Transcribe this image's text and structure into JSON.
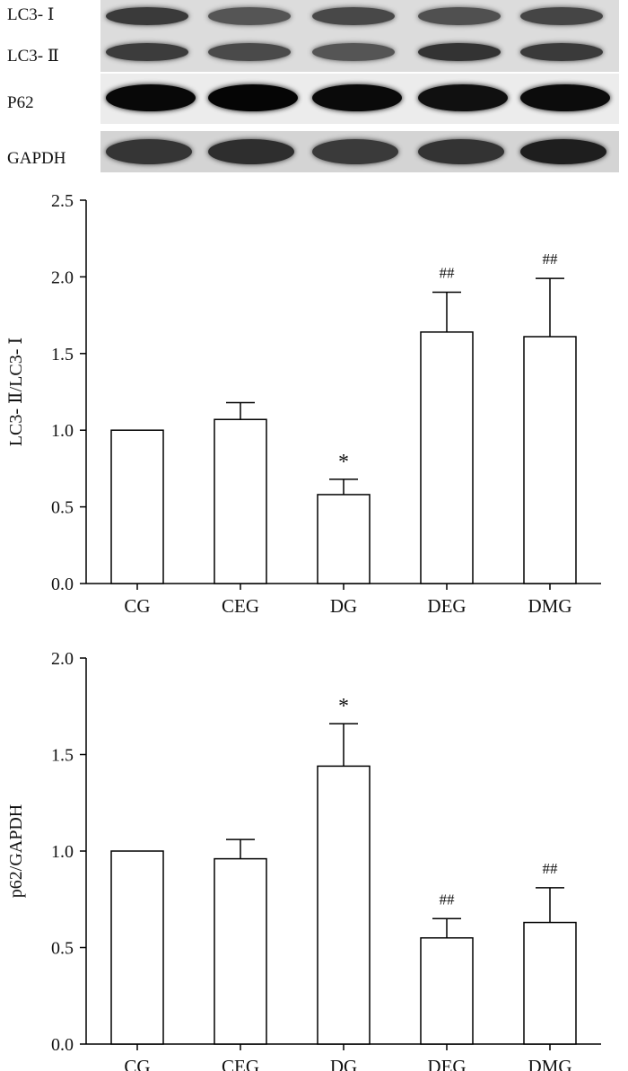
{
  "blot": {
    "labels": [
      "LC3- Ⅰ",
      "LC3- Ⅱ",
      "P62",
      "GAPDH"
    ],
    "lane_count": 5
  },
  "chart_data": [
    {
      "type": "bar",
      "categories": [
        "CG",
        "CEG",
        "DG",
        "DEG",
        "DMG"
      ],
      "values": [
        1.0,
        1.07,
        0.58,
        1.64,
        1.61
      ],
      "errors": [
        0.0,
        0.11,
        0.1,
        0.26,
        0.38
      ],
      "annotations": [
        "",
        "",
        "*",
        "##",
        "##"
      ],
      "ylabel": "LC3- Ⅱ/LC3- Ⅰ",
      "xlabel": "",
      "ylim": [
        0,
        2.5
      ],
      "yticks": [
        "0.0",
        "0.5",
        "1.0",
        "1.5",
        "2.0",
        "2.5"
      ]
    },
    {
      "type": "bar",
      "categories": [
        "CG",
        "CEG",
        "DG",
        "DEG",
        "DMG"
      ],
      "values": [
        1.0,
        0.96,
        1.44,
        0.55,
        0.63
      ],
      "errors": [
        0.0,
        0.1,
        0.22,
        0.1,
        0.18
      ],
      "annotations": [
        "",
        "",
        "*",
        "##",
        "##"
      ],
      "ylabel": "p62/GAPDH",
      "xlabel": "",
      "ylim": [
        0,
        2.0
      ],
      "yticks": [
        "0.0",
        "0.5",
        "1.0",
        "1.5",
        "2.0"
      ]
    }
  ]
}
